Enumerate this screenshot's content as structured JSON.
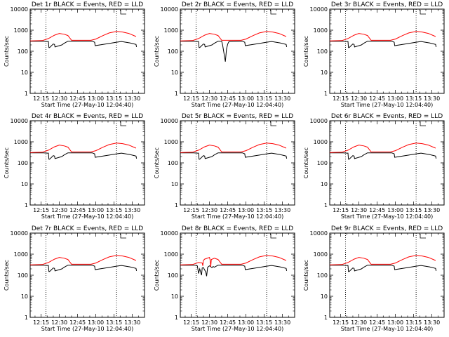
{
  "chart_data": [
    {
      "type": "line",
      "title": "Det 1r BLACK = Events, RED = LLD",
      "xlabel": "Start Time (27-May-10 12:04:40)",
      "ylabel": "Counts/sec",
      "yscale": "log",
      "ylim": [
        1,
        10000
      ],
      "xlim": [
        "12:06",
        "13:40"
      ],
      "xticks": [
        "12:15",
        "12:30",
        "12:45",
        "13:00",
        "13:15",
        "13:30"
      ],
      "yticks": [
        "1",
        "10",
        "100",
        "1000",
        "10000"
      ],
      "vlines": [
        "12:19",
        "13:17"
      ],
      "anomaly": "none",
      "series": [
        {
          "name": "Events",
          "color": "#000000"
        },
        {
          "name": "LLD",
          "color": "#ff0000"
        }
      ]
    },
    {
      "type": "line",
      "title": "Det 2r BLACK = Events, RED = LLD",
      "xlabel": "Start Time (27-May-10 12:04:40)",
      "ylabel": "Counts/sec",
      "yscale": "log",
      "ylim": [
        1,
        10000
      ],
      "xlim": [
        "12:06",
        "13:40"
      ],
      "xticks": [
        "12:15",
        "12:30",
        "12:45",
        "13:00",
        "13:15",
        "13:30"
      ],
      "yticks": [
        "1",
        "10",
        "100",
        "1000",
        "10000"
      ],
      "vlines": [
        "12:19",
        "13:17"
      ],
      "anomaly": "dip",
      "series": [
        {
          "name": "Events",
          "color": "#000000"
        },
        {
          "name": "LLD",
          "color": "#ff0000"
        }
      ]
    },
    {
      "type": "line",
      "title": "Det 3r BLACK = Events, RED = LLD",
      "xlabel": "Start Time (27-May-10 12:04:40)",
      "ylabel": "Counts/sec",
      "yscale": "log",
      "ylim": [
        1,
        10000
      ],
      "xlim": [
        "12:06",
        "13:40"
      ],
      "xticks": [
        "12:15",
        "12:30",
        "12:45",
        "13:00",
        "13:15",
        "13:30"
      ],
      "yticks": [
        "1",
        "10",
        "100",
        "1000",
        "10000"
      ],
      "vlines": [
        "12:19",
        "13:17"
      ],
      "anomaly": "none",
      "series": [
        {
          "name": "Events",
          "color": "#000000"
        },
        {
          "name": "LLD",
          "color": "#ff0000"
        }
      ]
    },
    {
      "type": "line",
      "title": "Det 4r BLACK = Events, RED = LLD",
      "xlabel": "Start Time (27-May-10 12:04:40)",
      "ylabel": "Counts/sec",
      "yscale": "log",
      "ylim": [
        1,
        10000
      ],
      "xlim": [
        "12:06",
        "13:40"
      ],
      "xticks": [
        "12:15",
        "12:30",
        "12:45",
        "13:00",
        "13:15",
        "13:30"
      ],
      "yticks": [
        "1",
        "10",
        "100",
        "1000",
        "10000"
      ],
      "vlines": [
        "12:19",
        "13:17"
      ],
      "anomaly": "none",
      "series": [
        {
          "name": "Events",
          "color": "#000000"
        },
        {
          "name": "LLD",
          "color": "#ff0000"
        }
      ]
    },
    {
      "type": "line",
      "title": "Det 5r BLACK = Events, RED = LLD",
      "xlabel": "Start Time (27-May-10 12:04:40)",
      "ylabel": "Counts/sec",
      "yscale": "log",
      "ylim": [
        1,
        10000
      ],
      "xlim": [
        "12:06",
        "13:40"
      ],
      "xticks": [
        "12:15",
        "12:30",
        "12:45",
        "13:00",
        "13:15",
        "13:30"
      ],
      "yticks": [
        "1",
        "10",
        "100",
        "1000",
        "10000"
      ],
      "vlines": [
        "12:19",
        "13:17"
      ],
      "anomaly": "none",
      "series": [
        {
          "name": "Events",
          "color": "#000000"
        },
        {
          "name": "LLD",
          "color": "#ff0000"
        }
      ]
    },
    {
      "type": "line",
      "title": "Det 6r BLACK = Events, RED = LLD",
      "xlabel": "Start Time (27-May-10 12:04:40)",
      "ylabel": "Counts/sec",
      "yscale": "log",
      "ylim": [
        1,
        10000
      ],
      "xlim": [
        "12:06",
        "13:40"
      ],
      "xticks": [
        "12:15",
        "12:30",
        "12:45",
        "13:00",
        "13:15",
        "13:30"
      ],
      "yticks": [
        "1",
        "10",
        "100",
        "1000",
        "10000"
      ],
      "vlines": [
        "12:19",
        "13:17"
      ],
      "anomaly": "none",
      "series": [
        {
          "name": "Events",
          "color": "#000000"
        },
        {
          "name": "LLD",
          "color": "#ff0000"
        }
      ]
    },
    {
      "type": "line",
      "title": "Det 7r BLACK = Events, RED = LLD",
      "xlabel": "Start Time (27-May-10 12:04:40)",
      "ylabel": "Counts/sec",
      "yscale": "log",
      "ylim": [
        1,
        10000
      ],
      "xlim": [
        "12:06",
        "13:40"
      ],
      "xticks": [
        "12:15",
        "12:30",
        "12:45",
        "13:00",
        "13:15",
        "13:30"
      ],
      "yticks": [
        "1",
        "10",
        "100",
        "1000",
        "10000"
      ],
      "vlines": [
        "12:19",
        "13:17"
      ],
      "anomaly": "none",
      "series": [
        {
          "name": "Events",
          "color": "#000000"
        },
        {
          "name": "LLD",
          "color": "#ff0000"
        }
      ]
    },
    {
      "type": "line",
      "title": "Det 8r BLACK = Events, RED = LLD",
      "xlabel": "Start Time (27-May-10 12:04:40)",
      "ylabel": "Counts/sec",
      "yscale": "log",
      "ylim": [
        1,
        10000
      ],
      "xlim": [
        "12:06",
        "13:40"
      ],
      "xticks": [
        "12:15",
        "12:30",
        "12:45",
        "13:00",
        "13:15",
        "13:30"
      ],
      "yticks": [
        "1",
        "10",
        "100",
        "1000",
        "10000"
      ],
      "vlines": [
        "12:19",
        "13:17"
      ],
      "anomaly": "glitch",
      "series": [
        {
          "name": "Events",
          "color": "#000000"
        },
        {
          "name": "LLD",
          "color": "#ff0000"
        }
      ]
    },
    {
      "type": "line",
      "title": "Det 9r BLACK = Events, RED = LLD",
      "xlabel": "Start Time (27-May-10 12:04:40)",
      "ylabel": "Counts/sec",
      "yscale": "log",
      "ylim": [
        1,
        10000
      ],
      "xlim": [
        "12:06",
        "13:40"
      ],
      "xticks": [
        "12:15",
        "12:30",
        "12:45",
        "13:00",
        "13:15",
        "13:30"
      ],
      "yticks": [
        "1",
        "10",
        "100",
        "1000",
        "10000"
      ],
      "vlines": [
        "12:19",
        "13:17"
      ],
      "anomaly": "none",
      "series": [
        {
          "name": "Events",
          "color": "#000000"
        },
        {
          "name": "LLD",
          "color": "#ff0000"
        }
      ]
    }
  ]
}
